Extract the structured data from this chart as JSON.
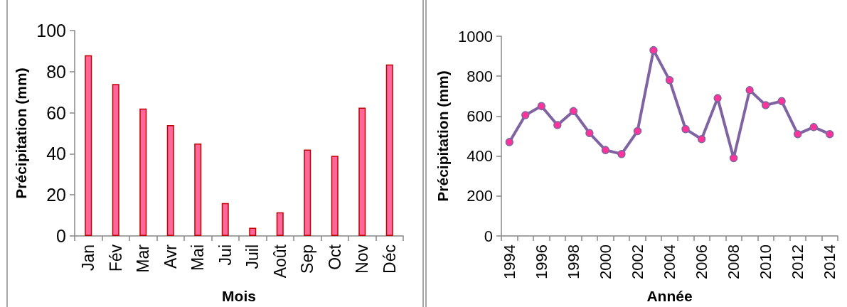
{
  "chart_data": [
    {
      "type": "bar",
      "xlabel": "Mois",
      "ylabel": "Précipitation (mm)",
      "categories": [
        "Jan",
        "Fév",
        "Mar",
        "Avr",
        "Mai",
        "Jui",
        "Juil",
        "Août",
        "Sep",
        "Oct",
        "Nov",
        "Déc"
      ],
      "values": [
        88,
        74,
        62,
        54,
        45,
        16,
        4,
        11.5,
        42,
        39,
        62.5,
        83.5
      ],
      "color": "#ff6699",
      "ylim": [
        0,
        100
      ],
      "yticks": [
        0,
        20,
        40,
        60,
        80,
        100
      ]
    },
    {
      "type": "line",
      "xlabel": "Année",
      "ylabel": "Précipitation (mm)",
      "categories": [
        "1994",
        null,
        "1996",
        null,
        "1998",
        null,
        "2000",
        null,
        "2002",
        null,
        "2004",
        null,
        "2006",
        null,
        "2008",
        null,
        "2010",
        null,
        "2012",
        null,
        "2014"
      ],
      "values": [
        470,
        605,
        650,
        555,
        625,
        515,
        430,
        410,
        525,
        930,
        780,
        535,
        485,
        690,
        390,
        730,
        655,
        675,
        510,
        545,
        510
      ],
      "color": "#8064a2",
      "colors": [
        "#ff3399",
        "#ff3399",
        "#ff3399",
        "#ff3399",
        "#ff3399",
        "#ff3399",
        "#ff3399",
        "#ff3399",
        "#ff3399",
        "#ff3399",
        "#ff3399",
        "#ff3399",
        "#ff3399",
        "#ff3399",
        "#ff3399",
        "#ff3399",
        "#ff3399",
        "#ff3399",
        "#ff3399",
        "#ff3399",
        "#ff3399"
      ],
      "marker": "circle",
      "line_style": "solid",
      "ylim": [
        0,
        1000
      ],
      "yticks": [
        0,
        200,
        400,
        600,
        800,
        1000
      ]
    }
  ]
}
